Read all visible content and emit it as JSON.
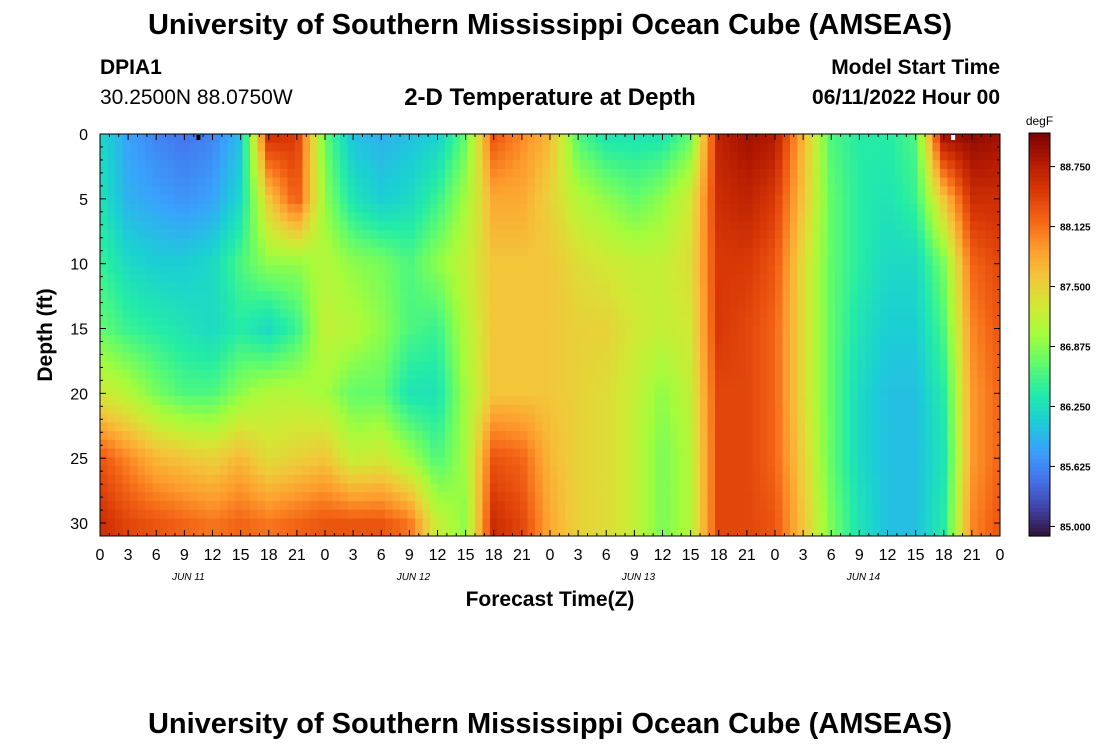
{
  "page": {
    "title_top": "University of Southern Mississippi Ocean Cube (AMSEAS)",
    "title_bottom": "University of Southern Mississippi Ocean Cube (AMSEAS)",
    "station_id": "DPIA1",
    "station_coords": "30.2500N  88.0750W",
    "plot_title": "2-D Temperature at Depth",
    "model_start_label": "Model Start Time",
    "model_start_value": "06/11/2022 Hour 00"
  },
  "chart_data": {
    "type": "heatmap",
    "title": "2-D Temperature at Depth",
    "xlabel": "Forecast Time(Z)",
    "ylabel": "Depth (ft)",
    "colorbar_label": "degF",
    "x_range_hours": [
      0,
      96
    ],
    "y_range_ft": [
      0,
      31
    ],
    "x_tick_labels": [
      "0",
      "3",
      "6",
      "9",
      "12",
      "15",
      "18",
      "21",
      "0",
      "3",
      "6",
      "9",
      "12",
      "15",
      "18",
      "21",
      "0",
      "3",
      "6",
      "9",
      "12",
      "15",
      "18",
      "21",
      "0",
      "3",
      "6",
      "9",
      "12",
      "15",
      "18",
      "21",
      "0"
    ],
    "day_labels": [
      "JUN 11",
      "JUN 12",
      "JUN 13",
      "JUN 14"
    ],
    "y_ticks": [
      0,
      5,
      10,
      15,
      20,
      25,
      30
    ],
    "colorbar_ticks": [
      "88.750",
      "88.125",
      "87.500",
      "86.875",
      "86.250",
      "85.625",
      "85.000"
    ],
    "color_range_degF": [
      84.9,
      89.1
    ],
    "colors": [
      "#30123b",
      "#4145ab",
      "#4675ed",
      "#39a2fc",
      "#1bcfd4",
      "#24eca6",
      "#61fc6c",
      "#a4fc3b",
      "#d1e834",
      "#f3c63a",
      "#fe9b2d",
      "#f36315",
      "#d93806",
      "#b11901",
      "#7a0403"
    ],
    "depth_ft": [
      0,
      5,
      10,
      15,
      20,
      25,
      30
    ],
    "time_h": [
      0,
      3,
      6,
      9,
      12,
      15,
      18,
      21,
      24,
      27,
      30,
      33,
      36,
      39,
      42,
      45,
      48,
      51,
      54,
      57,
      60,
      63,
      66,
      69,
      72,
      75,
      78,
      81,
      84,
      87,
      90,
      93,
      96
    ],
    "temperature_degF": [
      [
        86.2,
        85.8,
        85.6,
        85.5,
        85.6,
        86.0,
        88.6,
        88.5,
        86.7,
        86.0,
        85.9,
        86.0,
        86.1,
        86.7,
        88.3,
        88.0,
        87.7,
        86.6,
        86.3,
        86.3,
        86.3,
        86.7,
        88.7,
        88.9,
        88.8,
        87.7,
        86.6,
        86.4,
        86.4,
        86.6,
        88.9,
        89.0,
        88.9
      ],
      [
        86.3,
        85.9,
        85.8,
        85.7,
        85.8,
        86.2,
        87.6,
        88.3,
        86.9,
        86.3,
        86.1,
        86.2,
        86.5,
        87.0,
        87.8,
        87.8,
        87.5,
        87.1,
        86.9,
        86.7,
        86.9,
        87.3,
        88.6,
        88.7,
        88.5,
        87.6,
        86.7,
        86.4,
        86.3,
        86.5,
        87.6,
        88.6,
        88.6
      ],
      [
        86.5,
        86.2,
        86.1,
        86.1,
        86.2,
        86.6,
        86.9,
        86.9,
        87.1,
        86.9,
        86.8,
        86.6,
        86.9,
        87.2,
        87.6,
        87.6,
        87.6,
        87.4,
        87.3,
        87.2,
        87.2,
        87.4,
        88.5,
        88.5,
        88.3,
        87.4,
        86.7,
        86.4,
        86.2,
        86.2,
        86.8,
        88.2,
        88.4
      ],
      [
        86.7,
        86.5,
        86.4,
        86.3,
        86.2,
        86.4,
        86.2,
        86.5,
        87.2,
        87.1,
        86.9,
        86.6,
        86.5,
        87.1,
        87.6,
        87.6,
        87.6,
        87.5,
        87.5,
        87.3,
        87.2,
        87.3,
        88.5,
        88.4,
        88.2,
        87.4,
        86.7,
        86.3,
        86.1,
        86.1,
        86.6,
        88.0,
        88.3
      ],
      [
        87.3,
        87.1,
        86.8,
        86.6,
        86.6,
        86.9,
        87.1,
        87.1,
        87.0,
        86.7,
        86.7,
        86.3,
        86.3,
        87.0,
        87.6,
        87.6,
        87.6,
        87.5,
        87.4,
        87.2,
        86.9,
        87.2,
        88.4,
        88.4,
        88.2,
        87.4,
        86.7,
        86.2,
        86.0,
        86.0,
        86.4,
        87.9,
        88.2
      ],
      [
        88.3,
        88.0,
        87.7,
        87.6,
        87.5,
        87.7,
        87.4,
        87.5,
        87.6,
        87.2,
        87.3,
        87.0,
        86.6,
        87.0,
        88.3,
        88.2,
        87.7,
        87.5,
        87.4,
        87.2,
        86.8,
        87.1,
        88.4,
        88.4,
        88.2,
        87.5,
        86.7,
        86.2,
        86.0,
        86.0,
        86.3,
        87.9,
        88.2
      ],
      [
        88.6,
        88.4,
        88.3,
        88.2,
        88.1,
        88.2,
        88.1,
        88.2,
        88.3,
        88.3,
        88.3,
        88.1,
        87.2,
        86.9,
        88.6,
        88.4,
        87.8,
        87.5,
        87.4,
        87.2,
        86.8,
        87.1,
        88.4,
        88.4,
        88.3,
        87.6,
        86.8,
        86.3,
        86.0,
        86.0,
        86.4,
        88.0,
        88.3
      ]
    ]
  }
}
